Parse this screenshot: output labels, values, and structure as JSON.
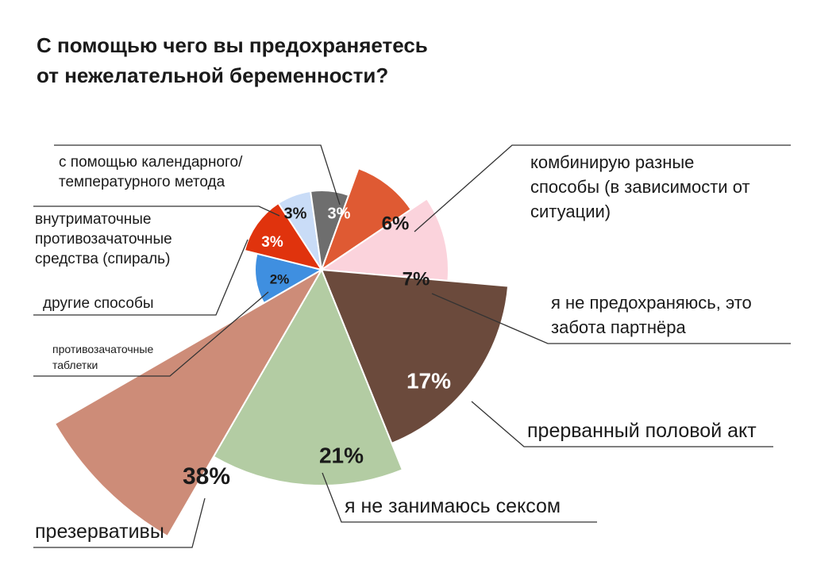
{
  "title": {
    "line1": "С помощью чего вы предохраняетесь",
    "line2": "от нежелательной беременности?"
  },
  "chart_data": {
    "type": "pie",
    "title": "С помощью чего вы предохраняетесь от нежелательной беременности?",
    "slices": [
      {
        "key": "calendar",
        "label_lines": [
          "с помощью календарного/",
          "температурного метода"
        ],
        "value_label": "3%",
        "value": 3,
        "color": "#c9dcf7"
      },
      {
        "key": "gray",
        "label_lines": [],
        "value_label": "3%",
        "value": 3,
        "color": "#6e6e6e"
      },
      {
        "key": "combine",
        "label_lines": [
          "комбинирую разные",
          "способы (в зависимости от",
          "ситуации)"
        ],
        "value_label": "6%",
        "value": 6,
        "color": "#df5a33"
      },
      {
        "key": "partner",
        "label_lines": [
          "я не предохраняюсь, это",
          "забота партнёра"
        ],
        "value_label": "7%",
        "value": 7,
        "color": "#fbd3dc"
      },
      {
        "key": "withdrawal",
        "label_lines": [
          "прерванный половой акт"
        ],
        "value_label": "17%",
        "value": 17,
        "color": "#6b4a3c"
      },
      {
        "key": "nosex",
        "label_lines": [
          "я не занимаюсь сексом"
        ],
        "value_label": "21%",
        "value": 21,
        "color": "#b3cca3"
      },
      {
        "key": "condoms",
        "label_lines": [
          "презервативы"
        ],
        "value_label": "38%",
        "value": 38,
        "color": "#cd8c78"
      },
      {
        "key": "pills",
        "label_lines": [
          "противозачаточные",
          "таблетки"
        ],
        "value_label": "",
        "value": 0,
        "color": "#cd8c78"
      },
      {
        "key": "other",
        "label_lines": [
          "другие способы"
        ],
        "value_label": "2%",
        "value": 2,
        "color": "#3f8fe0"
      },
      {
        "key": "iud",
        "label_lines": [
          "внутриматочные",
          "противозачаточные",
          "средства (спираль)"
        ],
        "value_label": "3%",
        "value": 3,
        "color": "#e0330d"
      }
    ]
  }
}
